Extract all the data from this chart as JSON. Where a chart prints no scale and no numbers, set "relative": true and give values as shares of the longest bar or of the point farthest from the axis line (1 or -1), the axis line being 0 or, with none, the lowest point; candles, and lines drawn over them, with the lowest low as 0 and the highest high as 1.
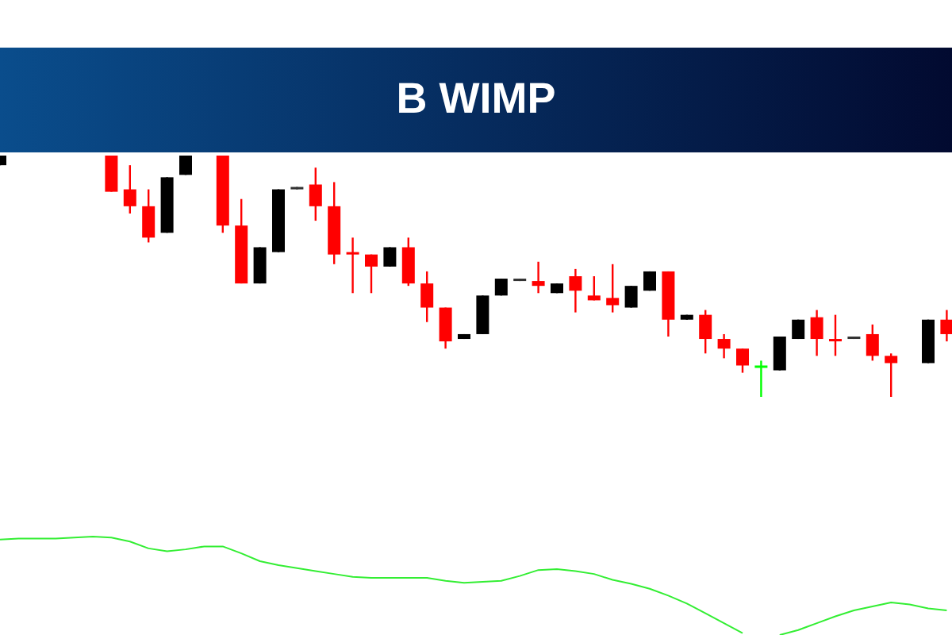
{
  "chart_data": [
    {
      "type": "candlestick",
      "title": "B WIMP",
      "relative": true,
      "categories": [
        null,
        null,
        null,
        null,
        null,
        null,
        null,
        null,
        null,
        null,
        null,
        null,
        null,
        null,
        null,
        null,
        null,
        null,
        null,
        null,
        null,
        null,
        null,
        null,
        null,
        null,
        null,
        null,
        null,
        null,
        null,
        null,
        null,
        null,
        null,
        null,
        null,
        null,
        null,
        null,
        null,
        null,
        null,
        null,
        null,
        null,
        null,
        null,
        null,
        null,
        null,
        null
      ],
      "ohlc": [
        [
          0.96,
          1.0,
          0.96,
          1.0
        ],
        null,
        null,
        null,
        null,
        null,
        [
          1.0,
          1.0,
          0.85,
          0.85
        ],
        [
          0.86,
          0.96,
          0.76,
          0.79
        ],
        [
          0.79,
          0.86,
          0.64,
          0.66
        ],
        [
          0.68,
          0.91,
          0.68,
          0.91
        ],
        [
          0.92,
          1.0,
          0.92,
          1.0
        ],
        null,
        [
          1.0,
          1.0,
          0.68,
          0.71
        ],
        [
          0.71,
          0.82,
          0.47,
          0.47
        ],
        [
          0.47,
          0.62,
          0.47,
          0.62
        ],
        [
          0.6,
          0.86,
          0.6,
          0.86
        ],
        [
          0.87,
          0.87,
          0.86,
          0.86
        ],
        [
          0.88,
          0.95,
          0.73,
          0.79
        ],
        [
          0.79,
          0.89,
          0.55,
          0.59
        ],
        [
          0.6,
          0.66,
          0.43,
          0.59
        ],
        [
          0.59,
          0.59,
          0.43,
          0.54
        ],
        [
          0.54,
          0.62,
          0.54,
          0.62
        ],
        [
          0.62,
          0.66,
          0.46,
          0.47
        ],
        [
          0.47,
          0.52,
          0.31,
          0.37
        ],
        [
          0.37,
          0.37,
          0.2,
          0.23
        ],
        [
          0.24,
          0.26,
          0.24,
          0.26
        ],
        [
          0.26,
          0.42,
          0.26,
          0.42
        ],
        [
          0.42,
          0.49,
          0.42,
          0.49
        ],
        [
          0.49,
          0.49,
          0.48,
          0.48
        ],
        [
          0.48,
          0.56,
          0.43,
          0.46
        ],
        [
          0.43,
          0.47,
          0.43,
          0.47
        ],
        [
          0.5,
          0.53,
          0.35,
          0.44
        ],
        [
          0.42,
          0.5,
          0.4,
          0.4
        ],
        [
          0.41,
          0.55,
          0.35,
          0.38
        ],
        [
          0.37,
          0.46,
          0.37,
          0.46
        ],
        [
          0.44,
          0.52,
          0.44,
          0.52
        ],
        [
          0.52,
          0.52,
          0.25,
          0.32
        ],
        [
          0.32,
          0.34,
          0.32,
          0.34
        ],
        [
          0.34,
          0.36,
          0.18,
          0.24
        ],
        [
          0.24,
          0.26,
          0.16,
          0.2
        ],
        [
          0.2,
          0.2,
          0.1,
          0.13
        ],
        [
          0.13,
          0.15,
          0,
          0.13
        ],
        [
          0.11,
          0.25,
          0.11,
          0.25
        ],
        [
          0.24,
          0.32,
          0.24,
          0.32
        ],
        [
          0.33,
          0.36,
          0.17,
          0.24
        ],
        [
          0.24,
          0.34,
          0.17,
          0.24
        ],
        [
          0.25,
          0.25,
          0.24,
          0.24
        ],
        [
          0.26,
          0.3,
          0.15,
          0.17
        ],
        [
          0.17,
          0.18,
          0,
          0.14
        ],
        null,
        [
          0.14,
          0.32,
          0.14,
          0.32
        ],
        [
          0.32,
          0.36,
          0.23,
          0.26
        ]
      ],
      "colors": [
        "#000000",
        null,
        null,
        null,
        null,
        null,
        "#ff0000",
        "#ff0000",
        "#ff0000",
        "#000000",
        "#000000",
        null,
        "#ff0000",
        "#ff0000",
        "#000000",
        "#000000",
        "#333333",
        "#ff0000",
        "#ff0000",
        "#ff0000",
        "#ff0000",
        "#000000",
        "#ff0000",
        "#ff0000",
        "#ff0000",
        "#000000",
        "#000000",
        "#000000",
        "#333333",
        "#ff0000",
        "#000000",
        "#ff0000",
        "#ff0000",
        "#ff0000",
        "#000000",
        "#000000",
        "#ff0000",
        "#000000",
        "#ff0000",
        "#ff0000",
        "#ff0000",
        "#00ff00",
        "#000000",
        "#000000",
        "#ff0000",
        "#ff0000",
        "#333333",
        "#ff0000",
        "#ff0000",
        null,
        "#000000",
        "#ff0000"
      ]
    },
    {
      "type": "line",
      "relative": true,
      "categories": [
        null,
        null,
        null,
        null,
        null,
        null,
        null,
        null,
        null,
        null,
        null,
        null,
        null,
        null,
        null,
        null,
        null,
        null,
        null,
        null,
        null,
        null,
        null,
        null,
        null,
        null,
        null,
        null,
        null,
        null,
        null,
        null,
        null,
        null,
        null,
        null,
        null,
        null,
        null,
        null,
        null,
        null,
        null,
        null,
        null,
        null,
        null,
        null,
        null,
        null,
        null,
        null
      ],
      "series": [
        {
          "color": "#33ee33",
          "values": [
            0.97,
            0.98,
            0.98,
            0.98,
            0.99,
            1.0,
            0.99,
            0.95,
            0.88,
            0.85,
            0.87,
            0.9,
            0.9,
            0.83,
            0.75,
            0.71,
            0.68,
            0.65,
            0.62,
            0.59,
            0.58,
            0.58,
            0.58,
            0.58,
            0.55,
            0.53,
            0.54,
            0.55,
            0.6,
            0.66,
            0.67,
            0.65,
            0.62,
            0.56,
            0.52,
            0.47,
            0.4,
            0.32,
            0.22,
            0.12,
            0.02,
            null,
            0.0,
            0.05,
            0.12,
            0.19,
            0.25,
            0.29,
            0.33,
            0.31,
            0.27,
            0.25
          ]
        }
      ]
    }
  ]
}
